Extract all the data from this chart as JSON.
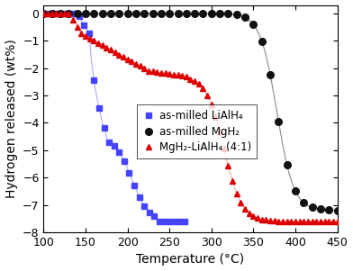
{
  "title": "",
  "xlabel": "Temperature (°C)",
  "ylabel": "Hydrogen released (wt%)",
  "xlim": [
    100,
    450
  ],
  "ylim": [
    -8,
    0.3
  ],
  "yticks": [
    0,
    -1,
    -2,
    -3,
    -4,
    -5,
    -6,
    -7,
    -8
  ],
  "xticks": [
    100,
    150,
    200,
    250,
    300,
    350,
    400,
    450
  ],
  "legend_entries": [
    "as-milled LiAlH₄",
    "as-milled MgH₂",
    "MgH₂-LiAlH₄ (4:1)"
  ],
  "li_color": "#4444ff",
  "li_line_color": "#aaaaff",
  "mg_color": "#111111",
  "mg_line_color": "#888888",
  "comp_color": "#dd0000",
  "comp_line_color": "#ffaaaa",
  "background_color": "white",
  "label_fontsize": 10,
  "tick_fontsize": 9,
  "legend_fontsize": 8.5
}
